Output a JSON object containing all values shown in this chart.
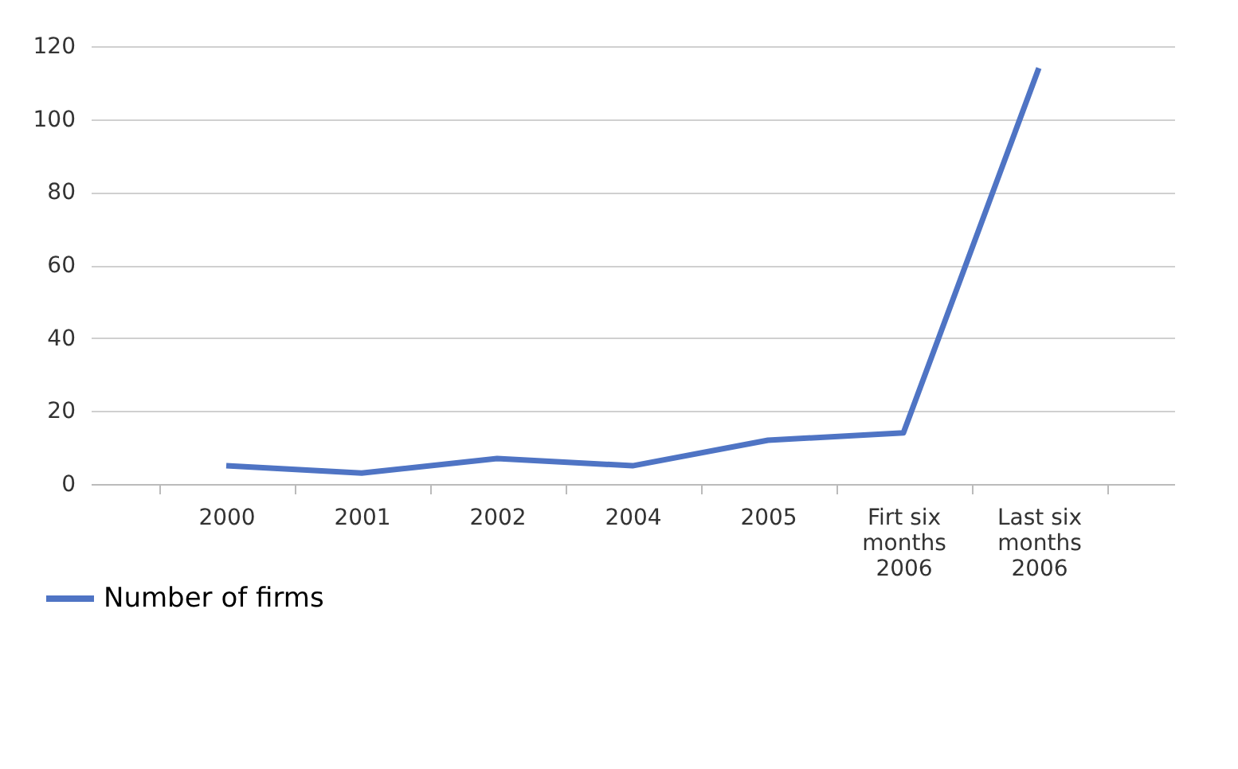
{
  "chart_data": {
    "type": "line",
    "categories": [
      "2000",
      "2001",
      "2002",
      "2004",
      "2005",
      "Firt six\nmonths\n2006",
      "Last six\nmonths\n2006"
    ],
    "series": [
      {
        "name": "Number of firms",
        "color": "#4f74c4",
        "values": [
          5,
          3,
          7,
          5,
          12,
          14,
          114
        ]
      }
    ],
    "ylim": [
      0,
      120
    ],
    "yticks": [
      0,
      20,
      40,
      60,
      80,
      100,
      120
    ],
    "grid": "y",
    "legend": "bottom left",
    "marker": "none",
    "line_style": "solid"
  }
}
